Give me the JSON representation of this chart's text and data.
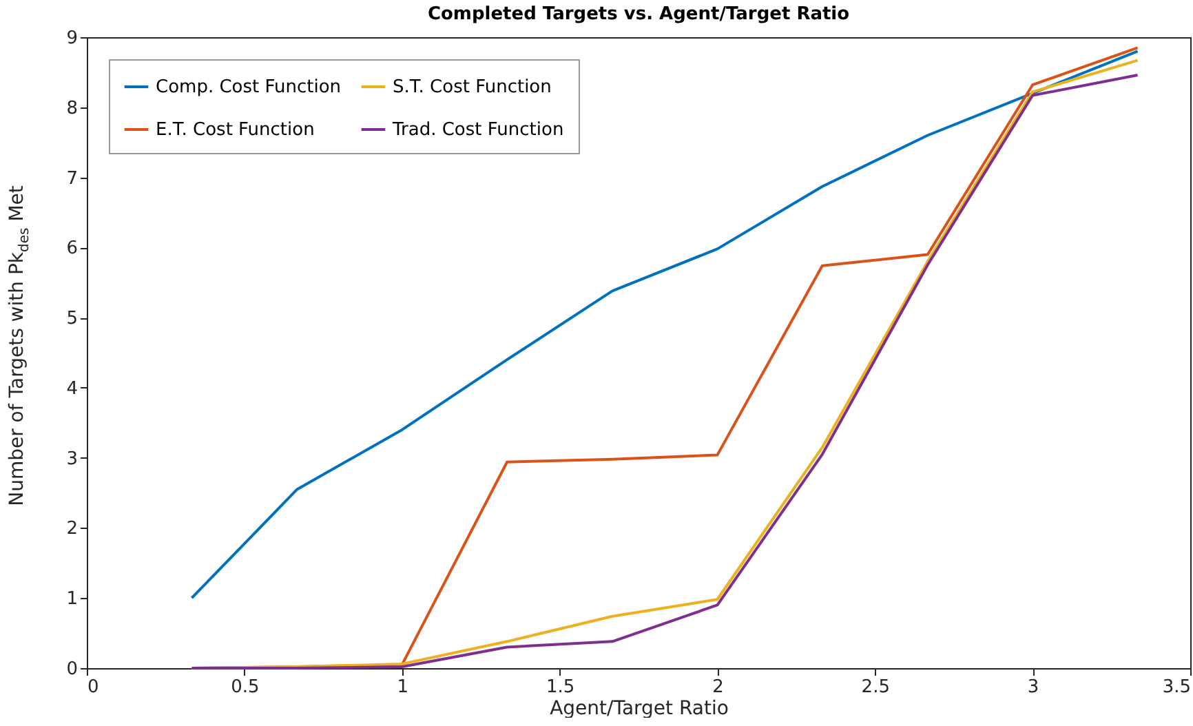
{
  "chart_data": {
    "type": "line",
    "title": "Completed Targets vs. Agent/Target Ratio",
    "xlabel": "Agent/Target Ratio",
    "ylabel": "Number of Targets with Pk$_{des}$ Met",
    "x": [
      0.333,
      0.667,
      1,
      1.333,
      1.667,
      2,
      2.333,
      2.667,
      3,
      3.333
    ],
    "series": [
      {
        "name": "Comp. Cost Function",
        "color": "#0072bd",
        "values": [
          1.0,
          2.55,
          3.4,
          4.4,
          5.38,
          5.98,
          6.87,
          7.6,
          8.2,
          8.8
        ]
      },
      {
        "name": "E.T. Cost Function",
        "color": "#d95319",
        "values": [
          0,
          0.02,
          0.05,
          2.94,
          2.98,
          3.04,
          5.74,
          5.9,
          8.32,
          8.85
        ]
      },
      {
        "name": "S.T. Cost Function",
        "color": "#edb120",
        "values": [
          0,
          0.02,
          0.06,
          0.38,
          0.74,
          0.98,
          3.15,
          5.8,
          8.22,
          8.67
        ]
      },
      {
        "name": "Trad. Cost Function",
        "color": "#7e2f8e",
        "values": [
          0,
          0,
          0.02,
          0.3,
          0.38,
          0.9,
          3.05,
          5.75,
          8.17,
          8.46
        ]
      }
    ],
    "xlim": [
      0,
      3.5
    ],
    "xticks": [
      0,
      0.5,
      1,
      1.5,
      2,
      2.5,
      3,
      3.5
    ],
    "ylim": [
      0,
      9
    ],
    "yticks": [
      0,
      1,
      2,
      3,
      4,
      5,
      6,
      7,
      8,
      9
    ],
    "grid": false,
    "legend": "top left",
    "line_style": "solid",
    "marker": "none"
  }
}
